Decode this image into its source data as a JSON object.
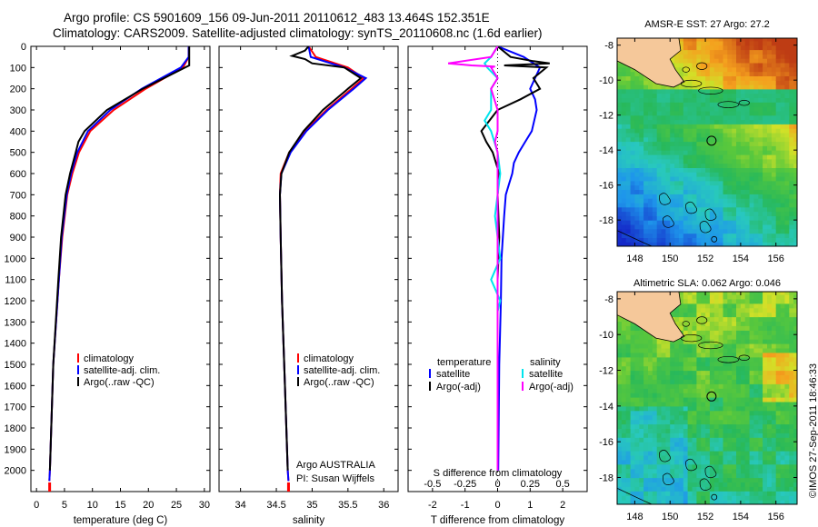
{
  "header": {
    "line1": "Argo profile: CS 5901609_156 09-Jun-2011 20110612_483 13.464S 152.351E",
    "line2": "Climatology: CARS2009. Satellite-adjusted climatology: synTS_20110608.nc (1.6d earlier)"
  },
  "footer": {
    "credit": "©IMOS 27-Sep-2011 18:46:33"
  },
  "colors": {
    "climatology": "#ff0000",
    "satellite": "#0000ff",
    "argo": "#000000",
    "salinity_satellite": "#00e5ee",
    "salinity_argo": "#ff00ff",
    "land": "#f5c89a"
  },
  "chart_data": [
    {
      "id": "temperature",
      "type": "line",
      "xlabel": "temperature (deg C)",
      "ylabel": "",
      "xlim": [
        -1,
        31
      ],
      "ylim": [
        2100,
        0
      ],
      "xticks": [
        0,
        5,
        10,
        15,
        20,
        25,
        30
      ],
      "yticks": [
        0,
        100,
        200,
        300,
        400,
        500,
        600,
        700,
        800,
        900,
        1000,
        1100,
        1200,
        1300,
        1400,
        1500,
        1600,
        1700,
        1800,
        1900,
        2000
      ],
      "legend": [
        "climatology",
        "satellite-adj. clim.",
        "Argo(..raw -QC)"
      ],
      "series": [
        {
          "name": "climatology",
          "depth": [
            0,
            50,
            100,
            200,
            300,
            400,
            500,
            600,
            700,
            900,
            1100,
            1500,
            2000,
            2050
          ],
          "values": [
            27.2,
            27.2,
            26.2,
            19.5,
            13.8,
            9.6,
            7.6,
            6.4,
            5.5,
            4.6,
            4.0,
            3.0,
            2.4,
            2.3
          ]
        },
        {
          "name": "satellite-adj. clim.",
          "depth": [
            0,
            50,
            100,
            200,
            300,
            400,
            500,
            600,
            700,
            900,
            1100,
            1500,
            2000,
            2050
          ],
          "values": [
            27.2,
            27.2,
            25.8,
            18.8,
            13.2,
            9.2,
            7.3,
            6.2,
            5.4,
            4.5,
            4.0,
            3.0,
            2.4,
            2.3
          ]
        },
        {
          "name": "Argo(..raw -QC)",
          "depth": [
            0,
            50,
            90,
            200,
            300,
            400,
            450,
            500,
            600,
            700,
            900,
            1100,
            1500,
            2000
          ],
          "values": [
            27.3,
            27.3,
            27.3,
            19.0,
            12.6,
            8.6,
            7.5,
            7.0,
            6.0,
            5.2,
            4.4,
            3.9,
            3.0,
            2.4
          ]
        }
      ]
    },
    {
      "id": "salinity",
      "type": "line",
      "xlabel": "salinity",
      "ylabel": "",
      "xlim": [
        33.7,
        36.2
      ],
      "ylim": [
        2100,
        0
      ],
      "xticks": [
        34,
        34.5,
        35,
        35.5,
        36
      ],
      "legend": [
        "climatology",
        "satellite-adj. clim.",
        "Argo(..raw -QC)"
      ],
      "annotation": [
        "Argo AUSTRALIA",
        "PI: Susan Wijffels"
      ],
      "series": [
        {
          "name": "climatology",
          "depth": [
            0,
            50,
            100,
            150,
            200,
            300,
            400,
            500,
            600,
            700,
            900,
            1200,
            1600,
            2000,
            2050
          ],
          "values": [
            34.95,
            35.05,
            35.5,
            35.72,
            35.55,
            35.2,
            34.9,
            34.68,
            34.56,
            34.55,
            34.56,
            34.58,
            34.62,
            34.66,
            34.67
          ]
        },
        {
          "name": "satellite-adj. clim.",
          "depth": [
            0,
            50,
            100,
            150,
            200,
            300,
            400,
            500,
            600,
            700,
            900,
            1200,
            1600,
            2000,
            2050
          ],
          "values": [
            34.95,
            34.98,
            35.45,
            35.75,
            35.58,
            35.22,
            34.92,
            34.7,
            34.57,
            34.55,
            34.56,
            34.58,
            34.62,
            34.66,
            34.67
          ]
        },
        {
          "name": "Argo(..raw -QC)",
          "depth": [
            0,
            20,
            45,
            60,
            80,
            100,
            150,
            200,
            300,
            400,
            450,
            500,
            600,
            700,
            900,
            1200,
            1600,
            2000
          ],
          "values": [
            34.95,
            34.9,
            34.72,
            34.9,
            35.0,
            35.45,
            35.68,
            35.5,
            35.15,
            34.88,
            34.78,
            34.68,
            34.57,
            34.55,
            34.56,
            34.58,
            34.62,
            34.66
          ]
        }
      ]
    },
    {
      "id": "difference",
      "type": "line",
      "xlabel": "T difference from climatology",
      "x2label": "S difference from climatology",
      "xlim": [
        -2.75,
        2.75
      ],
      "ylim": [
        2100,
        0
      ],
      "xticks": [
        -2,
        -1,
        0,
        1,
        2
      ],
      "x2ticks": [
        -0.5,
        -0.25,
        0,
        0.25,
        0.5
      ],
      "legend_titles": [
        "temperature",
        "salinity"
      ],
      "legend": [
        "satellite",
        "Argo(-adj)",
        "satellite",
        "Argo(-adj)"
      ],
      "series": [
        {
          "name": "T satellite",
          "depth": [
            0,
            50,
            100,
            200,
            250,
            300,
            400,
            450,
            500,
            550,
            600,
            650,
            700,
            800,
            1000,
            1200,
            1500,
            2000
          ],
          "values": [
            0,
            0.8,
            1.3,
            1.0,
            1.15,
            1.2,
            1.05,
            0.85,
            0.65,
            0.5,
            0.45,
            0.35,
            0.25,
            0.2,
            0.12,
            0.1,
            0.05,
            0.02
          ]
        },
        {
          "name": "T Argo(-adj)",
          "depth": [
            0,
            50,
            70,
            80,
            90,
            100,
            150,
            200,
            250,
            300,
            400,
            450,
            500,
            600,
            700,
            900,
            1100,
            1500,
            2000
          ],
          "values": [
            0,
            0.4,
            1.1,
            1.6,
            0.2,
            1.5,
            1.1,
            1.3,
            0.7,
            0.0,
            -0.5,
            -0.35,
            -0.15,
            0.05,
            0.0,
            0.05,
            0.0,
            0.0,
            0.0
          ]
        },
        {
          "name": "S satellite",
          "depth": [
            0,
            50,
            80,
            100,
            150,
            200,
            300,
            350,
            400,
            500,
            600,
            700,
            800,
            900,
            1000,
            1100,
            1200,
            1250,
            1500,
            2000
          ],
          "values": [
            0,
            -0.05,
            -0.1,
            -0.08,
            0.0,
            -0.05,
            -0.05,
            -0.1,
            -0.05,
            0.0,
            0.02,
            0.0,
            -0.02,
            0.0,
            0.02,
            -0.05,
            0.02,
            0.0,
            0.0,
            0.0
          ]
        },
        {
          "name": "S Argo(-adj)",
          "depth": [
            0,
            50,
            80,
            90,
            95,
            100,
            150,
            200,
            300,
            400,
            450,
            500,
            600,
            700,
            900,
            1200,
            1600,
            2000
          ],
          "values": [
            0,
            -0.05,
            -0.38,
            -0.2,
            -0.02,
            -0.05,
            0.0,
            -0.05,
            0.0,
            0.0,
            -0.02,
            0.0,
            0.0,
            0.0,
            0.0,
            0.0,
            0.0,
            0.0
          ]
        }
      ]
    },
    {
      "id": "sst-map",
      "type": "heatmap",
      "title": "AMSR-E SST: 27 Argo: 27.2",
      "xlim": [
        147,
        157.2
      ],
      "ylim": [
        -19.5,
        -7.6
      ],
      "xticks": [
        148,
        150,
        152,
        154,
        156
      ],
      "yticks": [
        -8,
        -10,
        -12,
        -14,
        -16,
        -18
      ],
      "argo_position": {
        "lon": 152.351,
        "lat": -13.464
      }
    },
    {
      "id": "sla-map",
      "type": "heatmap",
      "title": "Altimetric SLA: 0.062 Argo: 0.046",
      "xlim": [
        147,
        157.2
      ],
      "ylim": [
        -19.5,
        -7.6
      ],
      "xticks": [
        148,
        150,
        152,
        154,
        156
      ],
      "yticks": [
        -8,
        -10,
        -12,
        -14,
        -16,
        -18
      ],
      "argo_position": {
        "lon": 152.351,
        "lat": -13.464
      }
    }
  ]
}
